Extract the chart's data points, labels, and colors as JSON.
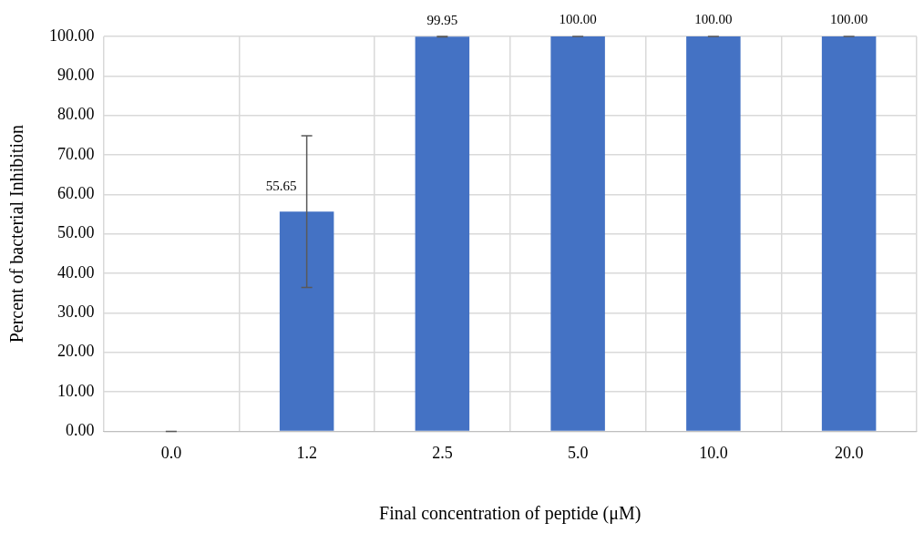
{
  "chart_data": {
    "type": "bar",
    "xlabel": "Final concentration of peptide (μM)",
    "ylabel": "Percent of bacterial Inhibition",
    "categories": [
      "0.0",
      "1.2",
      "2.5",
      "5.0",
      "10.0",
      "20.0"
    ],
    "values": [
      0,
      55.65,
      99.95,
      100,
      100,
      100
    ],
    "errors": [
      0,
      19.2,
      0.05,
      0,
      0,
      0
    ],
    "value_labels": [
      null,
      "55.65",
      "99.95",
      "100.00",
      "100.00",
      "100.00"
    ],
    "color": "#4472c4",
    "ylim": [
      0,
      100
    ],
    "yticks": [
      {
        "value": 0,
        "label": "0.00"
      },
      {
        "value": 10,
        "label": "10.00"
      },
      {
        "value": 20,
        "label": "20.00"
      },
      {
        "value": 30,
        "label": "30.00"
      },
      {
        "value": 40,
        "label": "40.00"
      },
      {
        "value": 50,
        "label": "50.00"
      },
      {
        "value": 60,
        "label": "60.00"
      },
      {
        "value": 70,
        "label": "70.00"
      },
      {
        "value": 80,
        "label": "80.00"
      },
      {
        "value": 90,
        "label": "90.00"
      },
      {
        "value": 100,
        "label": "100.00"
      }
    ],
    "grid": true,
    "legend": false
  }
}
